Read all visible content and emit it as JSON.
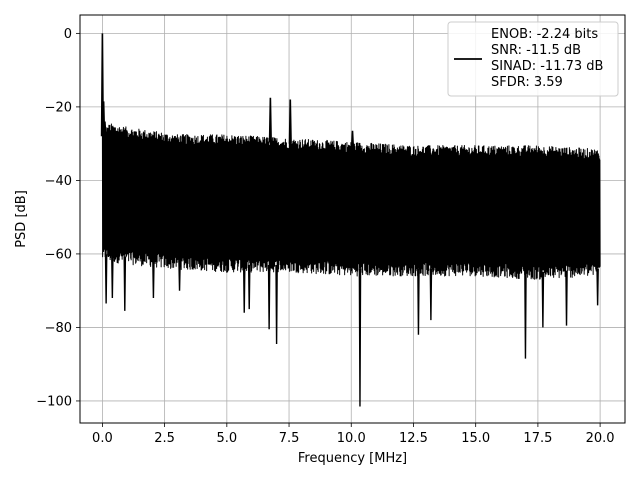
{
  "chart_data": {
    "type": "line",
    "xlabel": "Frequency [MHz]",
    "ylabel": "PSD [dB]",
    "xlim": [
      -0.9,
      21.0
    ],
    "ylim": [
      -106,
      5
    ],
    "xticks": [
      0.0,
      2.5,
      5.0,
      7.5,
      10.0,
      12.5,
      15.0,
      17.5,
      20.0
    ],
    "xtick_labels": [
      "0.0",
      "2.5",
      "5.0",
      "7.5",
      "10.0",
      "12.5",
      "15.0",
      "17.5",
      "20.0"
    ],
    "yticks": [
      0,
      -20,
      -40,
      -60,
      -80,
      -100
    ],
    "ytick_labels": [
      "0",
      "−20",
      "−40",
      "−60",
      "−80",
      "−100"
    ],
    "grid": true,
    "legend_position": "top-right",
    "line_color": "#000000",
    "series": [
      {
        "name": "ENOB: -2.24 bits\nSNR: -11.5 dB\nSINAD: -11.73 dB\nSFDR: 3.59",
        "legend_lines": [
          "ENOB: -2.24 bits",
          "SNR: -11.5 dB",
          "SINAD: -11.73 dB",
          "SFDR: 3.59"
        ],
        "x_range": [
          0.0,
          20.0
        ],
        "upper_envelope": [
          [
            0.0,
            -28
          ],
          [
            0.3,
            -26
          ],
          [
            1.0,
            -27
          ],
          [
            2.0,
            -28
          ],
          [
            3.0,
            -29
          ],
          [
            5.0,
            -29
          ],
          [
            7.5,
            -30
          ],
          [
            10.0,
            -31
          ],
          [
            12.5,
            -32
          ],
          [
            15.0,
            -32
          ],
          [
            17.5,
            -32
          ],
          [
            20.0,
            -33
          ]
        ],
        "lower_envelope": [
          [
            0.0,
            -60
          ],
          [
            2.5,
            -62
          ],
          [
            5.0,
            -63
          ],
          [
            7.5,
            -63
          ],
          [
            10.0,
            -64
          ],
          [
            12.5,
            -64
          ],
          [
            15.0,
            -64
          ],
          [
            17.5,
            -65
          ],
          [
            20.0,
            -64
          ]
        ],
        "peaks": [
          [
            0.0,
            0.0
          ],
          [
            0.05,
            -18.5
          ],
          [
            0.1,
            -24
          ],
          [
            6.75,
            -17.5
          ],
          [
            7.55,
            -18
          ],
          [
            10.05,
            -26.5
          ]
        ],
        "dips": [
          [
            0.15,
            -73.5
          ],
          [
            0.4,
            -72
          ],
          [
            0.9,
            -75.5
          ],
          [
            2.05,
            -72
          ],
          [
            3.1,
            -70
          ],
          [
            5.7,
            -76
          ],
          [
            5.9,
            -75
          ],
          [
            6.7,
            -80.5
          ],
          [
            7.0,
            -84.5
          ],
          [
            10.35,
            -101.5
          ],
          [
            12.7,
            -82
          ],
          [
            13.2,
            -78
          ],
          [
            17.0,
            -88.5
          ],
          [
            17.7,
            -80
          ],
          [
            18.65,
            -79.5
          ],
          [
            19.9,
            -74
          ]
        ]
      }
    ]
  }
}
